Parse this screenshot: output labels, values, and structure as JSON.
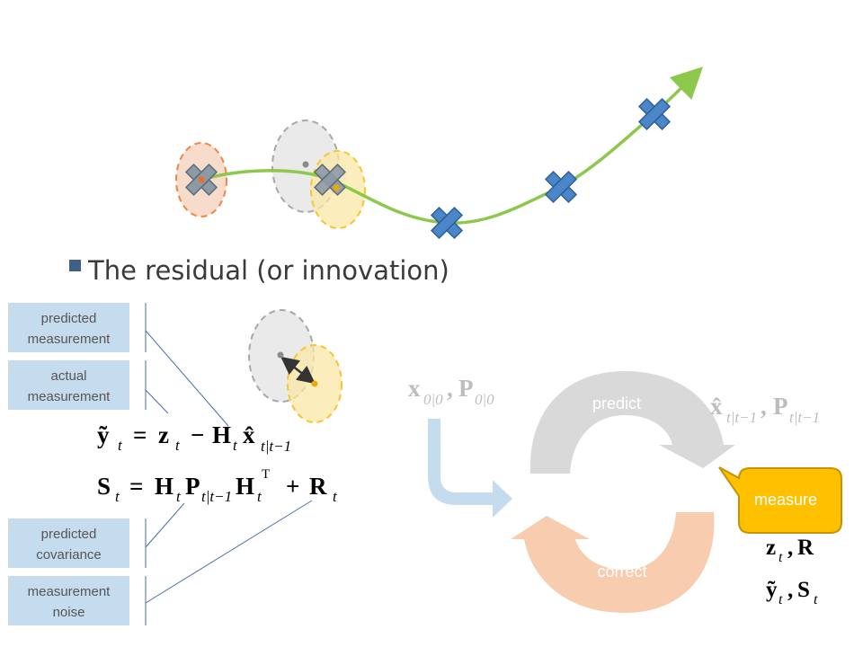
{
  "bullet": {
    "text": "The residual (or innovation)"
  },
  "labels": {
    "predicted_measurement": [
      "predicted",
      "measurement"
    ],
    "actual_measurement": [
      "actual",
      "measurement"
    ],
    "predicted_covariance": [
      "predicted",
      "covariance"
    ],
    "measurement_noise": [
      "measurement",
      "noise"
    ]
  },
  "equations": {
    "residual": {
      "lhs": "ỹ",
      "lhs_sub": "t",
      "z": "z",
      "z_sub": "t",
      "minus": "−",
      "H": "H",
      "H_sub": "t",
      "xhat": "x̂",
      "xhat_sub": "t|t−1"
    },
    "covariance": {
      "lhs": "S",
      "lhs_sub": "t",
      "H": "H",
      "H_sub": "t",
      "P": "P",
      "P_sub": "t|t−1",
      "H2": "H",
      "H2_sub": "t",
      "H2_sup": "T",
      "plus": "+",
      "R": "R",
      "R_sub": "t"
    }
  },
  "cycle": {
    "predict": "predict",
    "correct": "correct",
    "measure": "measure",
    "init": {
      "x": "x",
      "x_sub": "0|0",
      "comma": ",",
      "P": "P",
      "P_sub": "0|0"
    },
    "prior": {
      "x": "x̂",
      "x_sub": "t|t−1",
      "comma": ",",
      "P": "P",
      "P_sub": "t|t−1"
    },
    "meas": {
      "z": "z",
      "z_sub": "t",
      "comma": ",",
      "R": "R"
    },
    "innov": {
      "y": "ỹ",
      "y_sub": "t",
      "comma": ",",
      "S": "S",
      "S_sub": "t"
    }
  },
  "colors": {
    "trajectory": "#8cc84b",
    "marker_blue": "#4a86c8",
    "marker_gray": "#8d9aa6",
    "orange": "#e8884a",
    "yellow": "#f7c530",
    "gray": "#a8a8a8",
    "label_box": "#c5dcef",
    "measure_box": "#ffc000"
  }
}
